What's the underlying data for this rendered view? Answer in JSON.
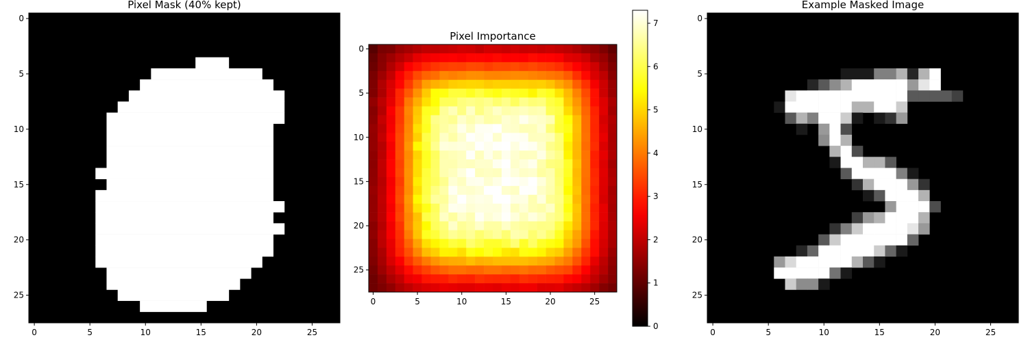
{
  "chart_data": [
    {
      "type": "heatmap",
      "title": "Pixel Mask (40% kept)",
      "colormap": "gray",
      "xlabel": "",
      "ylabel": "",
      "xlim": [
        -0.5,
        27.5
      ],
      "ylim": [
        27.5,
        -0.5
      ],
      "x_ticks": [
        0,
        5,
        10,
        15,
        20,
        25
      ],
      "y_ticks": [
        0,
        5,
        10,
        15,
        20,
        25
      ],
      "rows_kept": [
        [],
        [],
        [],
        [],
        [
          [
            15,
            17
          ]
        ],
        [
          [
            11,
            20
          ]
        ],
        [
          [
            10,
            21
          ]
        ],
        [
          [
            9,
            22
          ]
        ],
        [
          [
            8,
            22
          ]
        ],
        [
          [
            7,
            22
          ]
        ],
        [
          [
            7,
            21
          ]
        ],
        [
          [
            7,
            21
          ]
        ],
        [
          [
            7,
            21
          ]
        ],
        [
          [
            7,
            21
          ]
        ],
        [
          [
            6,
            21
          ]
        ],
        [
          [
            7,
            21
          ]
        ],
        [
          [
            6,
            21
          ]
        ],
        [
          [
            6,
            22
          ]
        ],
        [
          [
            6,
            21
          ]
        ],
        [
          [
            6,
            22
          ]
        ],
        [
          [
            6,
            21
          ]
        ],
        [
          [
            6,
            21
          ]
        ],
        [
          [
            6,
            20
          ]
        ],
        [
          [
            7,
            19
          ]
        ],
        [
          [
            7,
            18
          ]
        ],
        [
          [
            8,
            17
          ]
        ],
        [
          [
            10,
            15
          ]
        ],
        []
      ]
    },
    {
      "type": "heatmap",
      "title": "Pixel Importance",
      "colormap": "hot",
      "xlabel": "",
      "ylabel": "",
      "xlim": [
        -0.5,
        27.5
      ],
      "ylim": [
        27.5,
        -0.5
      ],
      "x_ticks": [
        0,
        5,
        10,
        15,
        20,
        25
      ],
      "y_ticks": [
        0,
        5,
        10,
        15,
        20,
        25
      ],
      "value_range": [
        0,
        7.3
      ],
      "colorbar_ticks": [
        0,
        1,
        2,
        3,
        4,
        5,
        6,
        7
      ]
    },
    {
      "type": "heatmap",
      "title": "Example Masked Image",
      "colormap": "gray",
      "xlabel": "",
      "ylabel": "",
      "xlim": [
        -0.5,
        27.5
      ],
      "ylim": [
        27.5,
        -0.5
      ],
      "x_ticks": [
        0,
        5,
        10,
        15,
        20,
        25
      ],
      "y_ticks": [
        0,
        5,
        10,
        15,
        20,
        25
      ],
      "nonzero_pixels": [
        [
          5,
          12,
          0.1
        ],
        [
          5,
          13,
          0.1
        ],
        [
          5,
          14,
          0.1
        ],
        [
          5,
          15,
          0.5
        ],
        [
          5,
          16,
          0.5
        ],
        [
          5,
          17,
          0.7
        ],
        [
          5,
          18,
          0.15
        ],
        [
          5,
          19,
          0.7
        ],
        [
          5,
          20,
          1.0
        ],
        [
          6,
          9,
          0.15
        ],
        [
          6,
          10,
          0.35
        ],
        [
          6,
          11,
          0.55
        ],
        [
          6,
          12,
          0.7
        ],
        [
          6,
          13,
          1.0
        ],
        [
          6,
          14,
          1.0
        ],
        [
          6,
          15,
          1.0
        ],
        [
          6,
          16,
          1.0
        ],
        [
          6,
          17,
          1.0
        ],
        [
          6,
          18,
          0.6
        ],
        [
          6,
          19,
          0.9
        ],
        [
          6,
          20,
          1.0
        ],
        [
          7,
          7,
          0.9
        ],
        [
          7,
          8,
          1.0
        ],
        [
          7,
          9,
          1.0
        ],
        [
          7,
          10,
          1.0
        ],
        [
          7,
          11,
          1.0
        ],
        [
          7,
          12,
          1.0
        ],
        [
          7,
          13,
          1.0
        ],
        [
          7,
          14,
          1.0
        ],
        [
          7,
          15,
          1.0
        ],
        [
          7,
          16,
          1.0
        ],
        [
          7,
          17,
          1.0
        ],
        [
          7,
          18,
          0.35
        ],
        [
          7,
          19,
          0.35
        ],
        [
          7,
          20,
          0.35
        ],
        [
          7,
          21,
          0.35
        ],
        [
          7,
          22,
          0.25
        ],
        [
          8,
          6,
          0.1
        ],
        [
          8,
          7,
          1.0
        ],
        [
          8,
          8,
          1.0
        ],
        [
          8,
          9,
          1.0
        ],
        [
          8,
          10,
          1.0
        ],
        [
          8,
          11,
          1.0
        ],
        [
          8,
          12,
          1.0
        ],
        [
          8,
          13,
          0.7
        ],
        [
          8,
          14,
          0.7
        ],
        [
          8,
          15,
          1.0
        ],
        [
          8,
          16,
          1.0
        ],
        [
          8,
          17,
          0.8
        ],
        [
          9,
          7,
          0.35
        ],
        [
          9,
          8,
          0.7
        ],
        [
          9,
          9,
          0.5
        ],
        [
          9,
          10,
          1.0
        ],
        [
          9,
          11,
          1.0
        ],
        [
          9,
          12,
          0.8
        ],
        [
          9,
          13,
          0.1
        ],
        [
          9,
          15,
          0.1
        ],
        [
          9,
          16,
          0.2
        ],
        [
          9,
          17,
          0.6
        ],
        [
          10,
          8,
          0.1
        ],
        [
          10,
          10,
          0.6
        ],
        [
          10,
          11,
          1.0
        ],
        [
          10,
          12,
          0.3
        ],
        [
          11,
          10,
          0.55
        ],
        [
          11,
          11,
          1.0
        ],
        [
          11,
          12,
          0.7
        ],
        [
          12,
          11,
          0.7
        ],
        [
          12,
          12,
          1.0
        ],
        [
          12,
          13,
          0.3
        ],
        [
          13,
          11,
          0.1
        ],
        [
          13,
          12,
          1.0
        ],
        [
          13,
          13,
          1.0
        ],
        [
          13,
          14,
          0.7
        ],
        [
          13,
          15,
          0.7
        ],
        [
          13,
          16,
          0.35
        ],
        [
          14,
          12,
          0.35
        ],
        [
          14,
          13,
          1.0
        ],
        [
          14,
          14,
          1.0
        ],
        [
          14,
          15,
          1.0
        ],
        [
          14,
          16,
          1.0
        ],
        [
          14,
          17,
          0.5
        ],
        [
          14,
          18,
          0.1
        ],
        [
          15,
          13,
          0.2
        ],
        [
          15,
          14,
          0.7
        ],
        [
          15,
          15,
          1.0
        ],
        [
          15,
          16,
          1.0
        ],
        [
          15,
          17,
          1.0
        ],
        [
          15,
          18,
          0.6
        ],
        [
          15,
          19,
          0.2
        ],
        [
          16,
          14,
          0.1
        ],
        [
          16,
          15,
          0.35
        ],
        [
          16,
          16,
          1.0
        ],
        [
          16,
          17,
          1.0
        ],
        [
          16,
          18,
          1.0
        ],
        [
          16,
          19,
          0.7
        ],
        [
          17,
          16,
          0.6
        ],
        [
          17,
          17,
          1.0
        ],
        [
          17,
          18,
          1.0
        ],
        [
          17,
          19,
          1.0
        ],
        [
          17,
          20,
          0.3
        ],
        [
          18,
          13,
          0.25
        ],
        [
          18,
          14,
          0.6
        ],
        [
          18,
          15,
          0.7
        ],
        [
          18,
          16,
          1.0
        ],
        [
          18,
          17,
          1.0
        ],
        [
          18,
          18,
          1.0
        ],
        [
          18,
          19,
          0.7
        ],
        [
          19,
          11,
          0.2
        ],
        [
          19,
          12,
          0.5
        ],
        [
          19,
          13,
          0.8
        ],
        [
          19,
          14,
          1.0
        ],
        [
          19,
          15,
          1.0
        ],
        [
          19,
          16,
          1.0
        ],
        [
          19,
          17,
          1.0
        ],
        [
          19,
          18,
          0.9
        ],
        [
          19,
          19,
          0.6
        ],
        [
          20,
          10,
          0.35
        ],
        [
          20,
          11,
          0.8
        ],
        [
          20,
          12,
          1.0
        ],
        [
          20,
          13,
          1.0
        ],
        [
          20,
          14,
          1.0
        ],
        [
          20,
          15,
          1.0
        ],
        [
          20,
          16,
          1.0
        ],
        [
          20,
          17,
          1.0
        ],
        [
          20,
          18,
          0.4
        ],
        [
          21,
          8,
          0.15
        ],
        [
          21,
          9,
          0.4
        ],
        [
          21,
          10,
          1.0
        ],
        [
          21,
          11,
          1.0
        ],
        [
          21,
          12,
          1.0
        ],
        [
          21,
          13,
          1.0
        ],
        [
          21,
          14,
          1.0
        ],
        [
          21,
          15,
          0.8
        ],
        [
          21,
          16,
          0.4
        ],
        [
          21,
          17,
          0.1
        ],
        [
          22,
          6,
          0.6
        ],
        [
          22,
          7,
          0.85
        ],
        [
          22,
          8,
          1.0
        ],
        [
          22,
          9,
          1.0
        ],
        [
          22,
          10,
          1.0
        ],
        [
          22,
          11,
          1.0
        ],
        [
          22,
          12,
          1.0
        ],
        [
          22,
          13,
          0.7
        ],
        [
          22,
          14,
          0.35
        ],
        [
          22,
          15,
          0.1
        ],
        [
          23,
          6,
          1.0
        ],
        [
          23,
          7,
          1.0
        ],
        [
          23,
          8,
          1.0
        ],
        [
          23,
          9,
          1.0
        ],
        [
          23,
          10,
          1.0
        ],
        [
          23,
          11,
          0.45
        ],
        [
          23,
          12,
          0.1
        ],
        [
          24,
          7,
          0.8
        ],
        [
          24,
          8,
          0.55
        ],
        [
          24,
          9,
          0.55
        ],
        [
          24,
          10,
          0.1
        ]
      ]
    }
  ]
}
